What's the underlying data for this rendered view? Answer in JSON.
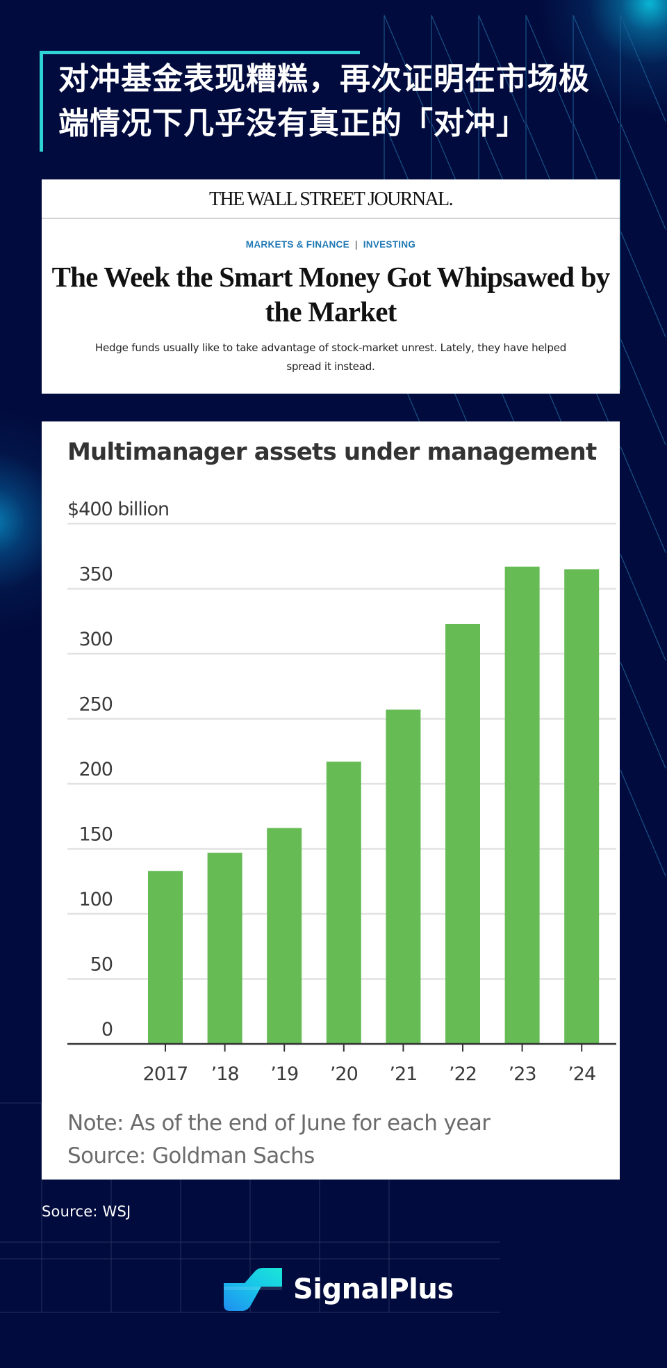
{
  "header": {
    "title_line1": "对冲基金表现糟糕，再次证明在市场极",
    "title_line2": "端情况下几乎没有真正的「对冲」"
  },
  "article": {
    "publication": "THE WALL STREET JOURNAL.",
    "breadcrumb": [
      "MARKETS & FINANCE",
      "INVESTING"
    ],
    "breadcrumb_separator": "|",
    "headline": "The Week the Smart Money Got Whipsawed by the Market",
    "dek": "Hedge funds usually like to take advantage of stock-market unrest. Lately, they have helped spread it instead.",
    "category_color": "#1f78b4"
  },
  "chart_data": {
    "type": "bar",
    "title": "Multimanager assets under management",
    "ylabel": "$400 billion",
    "xlabel": "",
    "categories": [
      "2017",
      "’18",
      "’19",
      "’20",
      "’21",
      "’22",
      "’23",
      "’24"
    ],
    "series": [
      {
        "name": "Multimanager AUM ($ billion)",
        "values": [
          133,
          147,
          166,
          217,
          257,
          323,
          367,
          365
        ],
        "color": "#66bb55"
      }
    ],
    "y_ticks": [
      {
        "value": 0,
        "label": "0"
      },
      {
        "value": 50,
        "label": "50"
      },
      {
        "value": 100,
        "label": "100"
      },
      {
        "value": 150,
        "label": "150"
      },
      {
        "value": 200,
        "label": "200"
      },
      {
        "value": 250,
        "label": "250"
      },
      {
        "value": 300,
        "label": "300"
      },
      {
        "value": 350,
        "label": "350"
      },
      {
        "value": 400,
        "label": "$400 billion"
      }
    ],
    "ylim": [
      0,
      400
    ],
    "grid": true,
    "legend": "none",
    "note": "Note: As of the end of June for each year",
    "source": "Source: Goldman Sachs"
  },
  "footer": {
    "source": "Source: WSJ",
    "brand": "SignalPlus",
    "brand_icon": "signalplus-logo-icon"
  },
  "colors": {
    "background": "#020b3d",
    "accent": "#2fd3d3",
    "bar": "#66bb55"
  }
}
